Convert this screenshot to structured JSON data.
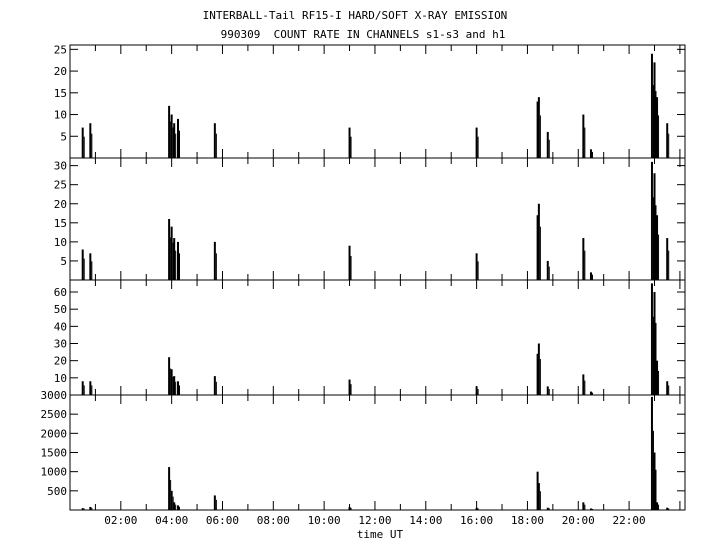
{
  "chart_data": {
    "type": "line",
    "title": "INTERBALL-Tail RF15-I HARD/SOFT X-RAY EMISSION",
    "subtitle": "990309  COUNT RATE IN CHANNELS s1-s3 and h1",
    "xlabel": "time UT",
    "x_tick_labels": [
      "02:00",
      "04:00",
      "06:00",
      "08:00",
      "10:00",
      "12:00",
      "14:00",
      "16:00",
      "18:00",
      "20:00",
      "22:00"
    ],
    "xlim_hours": [
      0,
      24.2
    ],
    "grid": false,
    "panels": [
      {
        "ylim": [
          0,
          26
        ],
        "yticks": [
          5,
          10,
          15,
          20,
          25
        ],
        "events": [
          [
            0.5,
            7
          ],
          [
            0.8,
            8
          ],
          [
            3.9,
            12
          ],
          [
            4.0,
            10
          ],
          [
            4.1,
            8
          ],
          [
            4.25,
            9
          ],
          [
            5.7,
            8
          ],
          [
            11.0,
            7
          ],
          [
            16.0,
            7
          ],
          [
            18.4,
            13
          ],
          [
            18.45,
            14
          ],
          [
            18.8,
            6
          ],
          [
            20.2,
            10
          ],
          [
            20.5,
            2
          ],
          [
            22.9,
            24
          ],
          [
            23.0,
            22
          ],
          [
            23.1,
            14
          ],
          [
            23.5,
            8
          ]
        ]
      },
      {
        "ylim": [
          0,
          32
        ],
        "yticks": [
          5,
          10,
          15,
          20,
          25,
          30
        ],
        "events": [
          [
            0.5,
            8
          ],
          [
            0.8,
            7
          ],
          [
            3.9,
            16
          ],
          [
            4.0,
            14
          ],
          [
            4.1,
            11
          ],
          [
            4.25,
            10
          ],
          [
            5.7,
            10
          ],
          [
            11.0,
            9
          ],
          [
            16.0,
            7
          ],
          [
            18.4,
            17
          ],
          [
            18.45,
            20
          ],
          [
            18.8,
            5
          ],
          [
            20.2,
            11
          ],
          [
            20.5,
            2
          ],
          [
            22.9,
            31
          ],
          [
            23.0,
            28
          ],
          [
            23.1,
            17
          ],
          [
            23.5,
            11
          ]
        ]
      },
      {
        "ylim": [
          0,
          67
        ],
        "yticks": [
          10,
          20,
          30,
          40,
          50,
          60
        ],
        "events": [
          [
            0.5,
            8
          ],
          [
            0.8,
            8
          ],
          [
            3.9,
            22
          ],
          [
            4.0,
            15
          ],
          [
            4.1,
            11
          ],
          [
            4.25,
            8
          ],
          [
            5.7,
            11
          ],
          [
            11.0,
            9
          ],
          [
            16.0,
            5
          ],
          [
            18.4,
            24
          ],
          [
            18.45,
            30
          ],
          [
            18.8,
            5
          ],
          [
            20.2,
            12
          ],
          [
            20.5,
            2
          ],
          [
            22.9,
            65
          ],
          [
            23.0,
            60
          ],
          [
            23.1,
            20
          ],
          [
            23.5,
            8
          ]
        ]
      },
      {
        "ylim": [
          0,
          3000
        ],
        "yticks": [
          500,
          1000,
          1500,
          2000,
          2500,
          3000
        ],
        "events": [
          [
            0.5,
            50
          ],
          [
            0.8,
            80
          ],
          [
            3.9,
            1120
          ],
          [
            4.0,
            500
          ],
          [
            4.1,
            200
          ],
          [
            4.25,
            120
          ],
          [
            5.7,
            380
          ],
          [
            11.0,
            80
          ],
          [
            16.0,
            60
          ],
          [
            18.4,
            1000
          ],
          [
            18.45,
            700
          ],
          [
            18.8,
            60
          ],
          [
            20.2,
            200
          ],
          [
            20.5,
            40
          ],
          [
            22.9,
            2950
          ],
          [
            23.0,
            1500
          ],
          [
            23.1,
            200
          ],
          [
            23.5,
            60
          ]
        ]
      }
    ]
  }
}
